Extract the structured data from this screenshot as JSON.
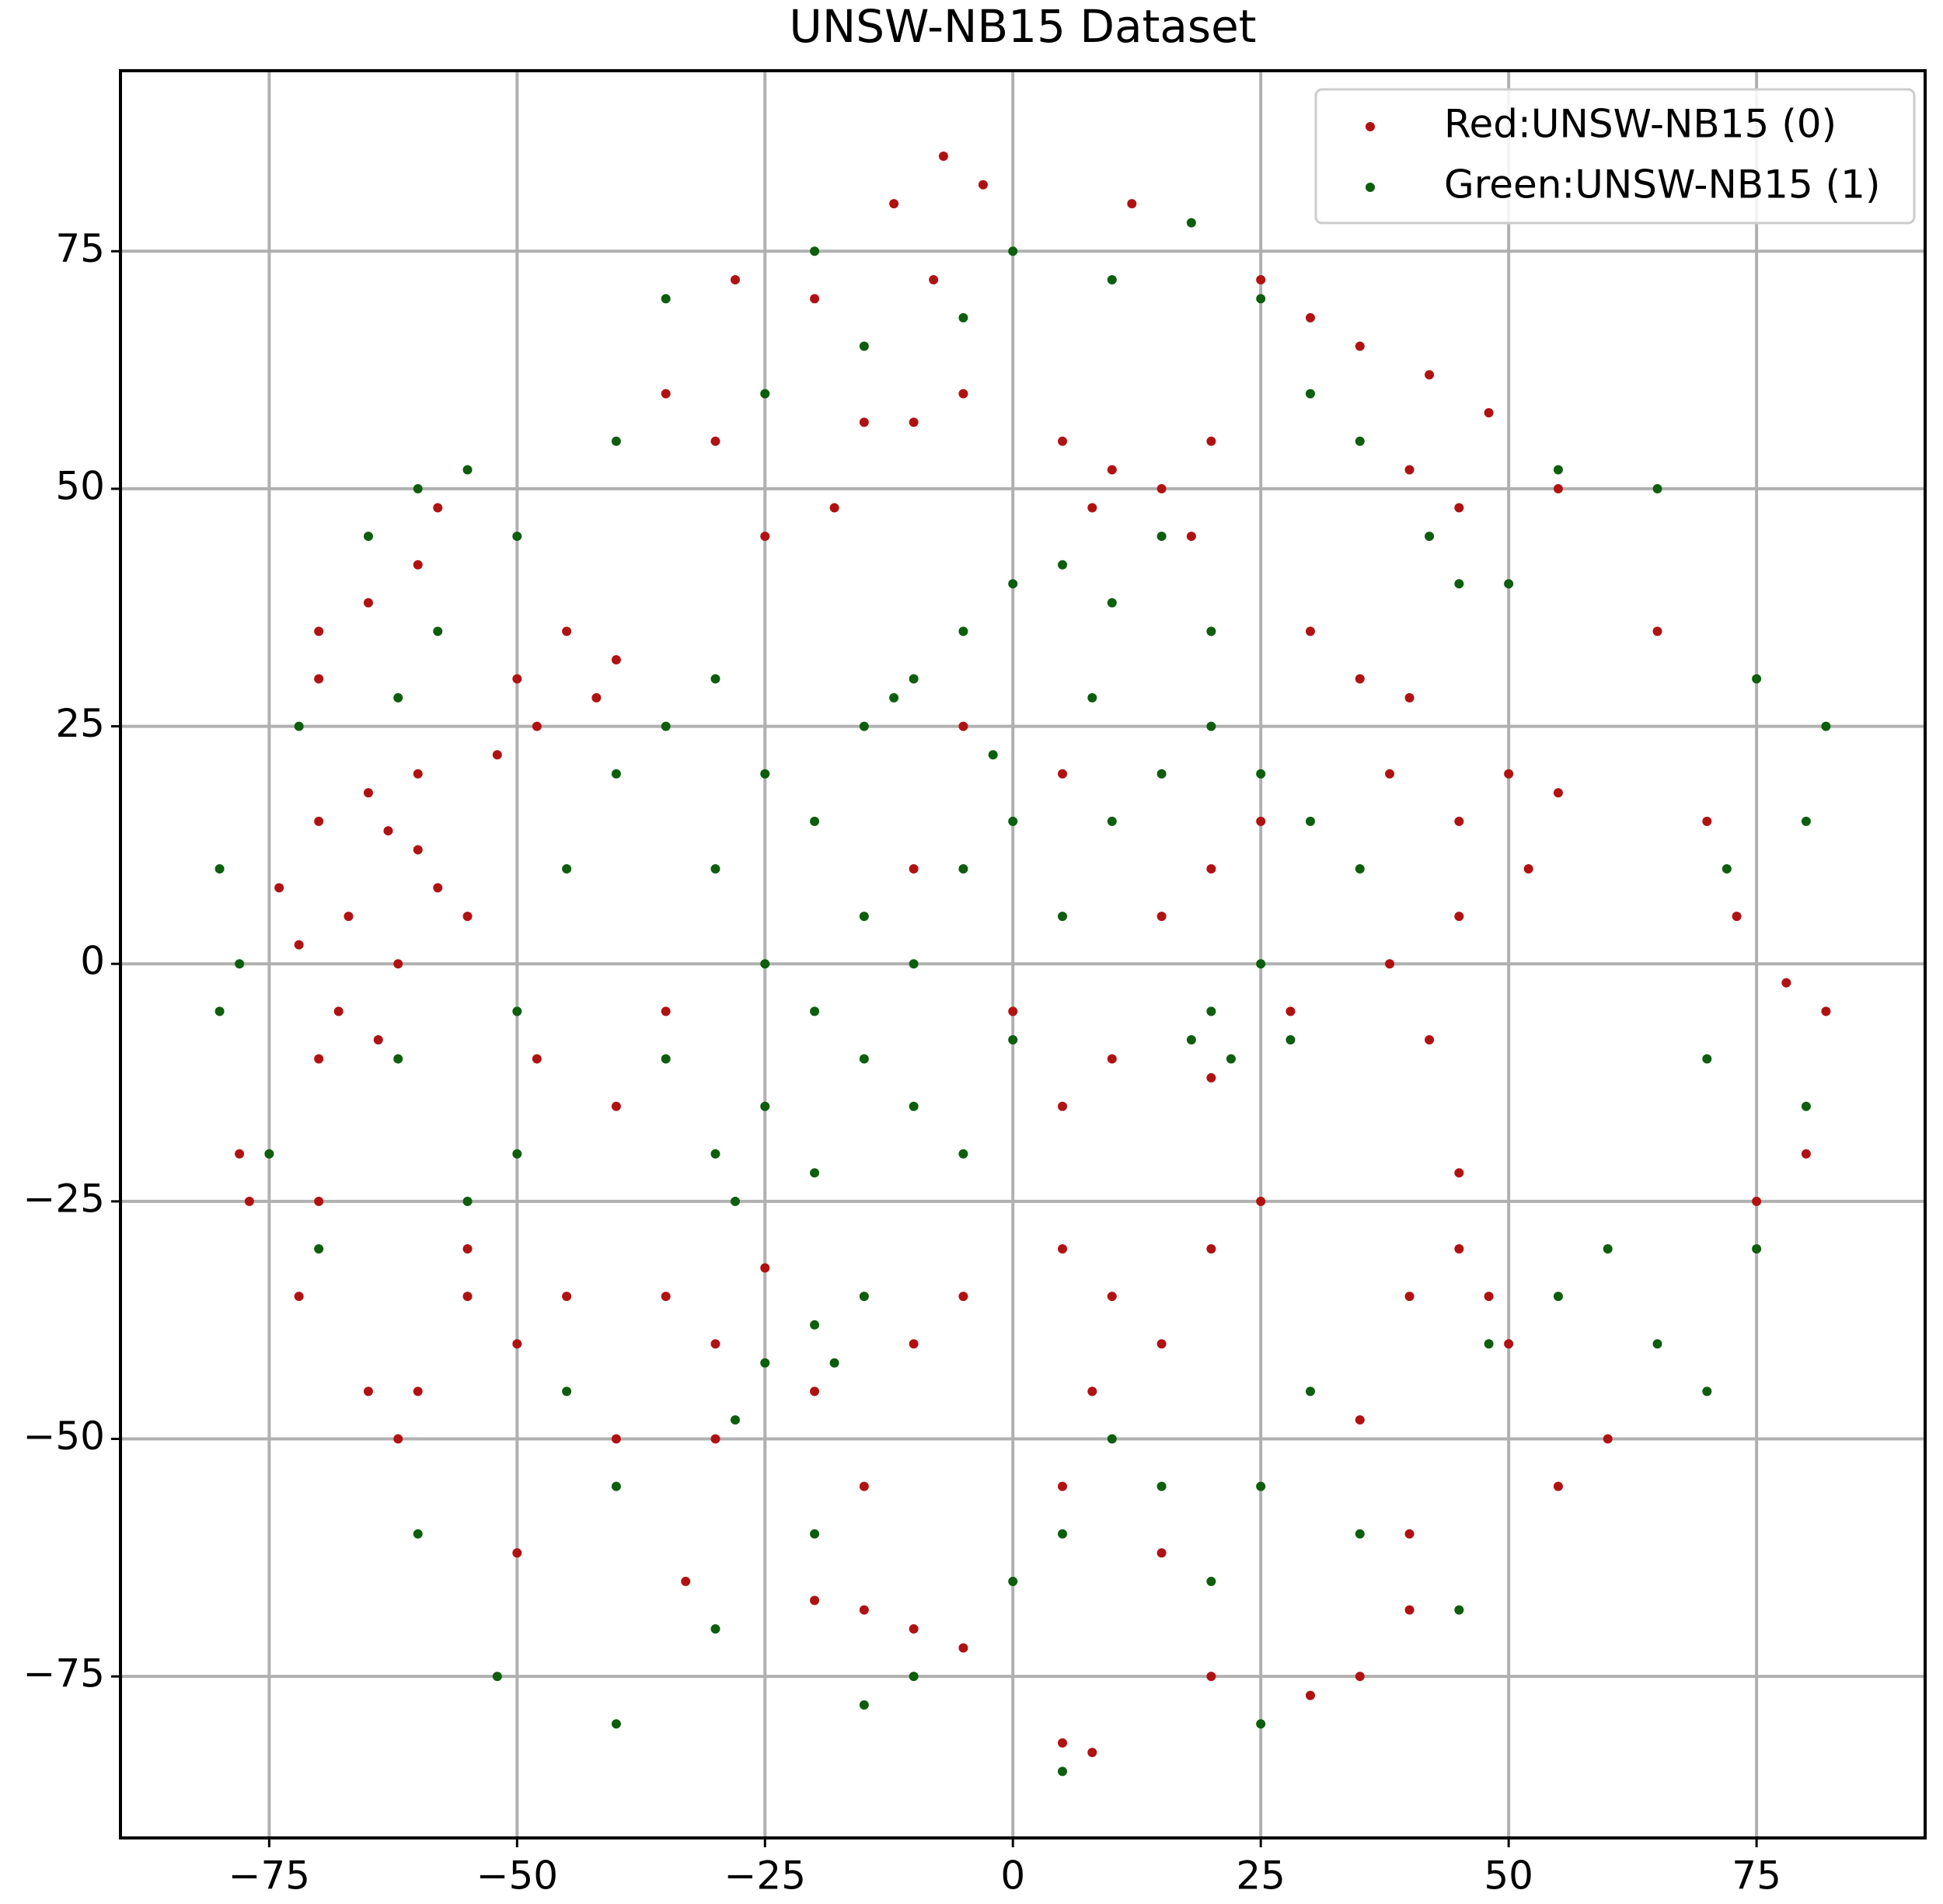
{
  "chart_data": {
    "type": "scatter",
    "title": "UNSW-NB15 Dataset",
    "xlim": [
      -90,
      92
    ],
    "ylim": [
      -92,
      94
    ],
    "xticks": [
      {
        "value": -75,
        "label": "−75"
      },
      {
        "value": -50,
        "label": "−50"
      },
      {
        "value": -25,
        "label": "−25"
      },
      0,
      25,
      50,
      75
    ],
    "yticks": [
      {
        "value": -75,
        "label": "−75"
      },
      {
        "value": -50,
        "label": "−50"
      },
      {
        "value": -25,
        "label": "−25"
      },
      0,
      25,
      50,
      75
    ],
    "grid": true,
    "legend": "upper right",
    "series": [
      {
        "name": "Red:UNSW-NB15 (0)",
        "color": "#b01212",
        "x": [
          -70,
          -65,
          -60,
          -67,
          -72,
          -62,
          -58,
          -68,
          -64,
          -74,
          -60,
          -55,
          -70,
          -63,
          -50,
          -45,
          -42,
          -48,
          -40,
          -52,
          -70,
          -65,
          -60,
          -58,
          -70,
          -35,
          -30,
          -20,
          -15,
          -10,
          -5,
          -8,
          -12,
          -7,
          -28,
          -25,
          -18,
          5,
          10,
          15,
          20,
          8,
          18,
          12,
          -3,
          25,
          30,
          35,
          42,
          48,
          55,
          40,
          45,
          30,
          35,
          40,
          38,
          45,
          50,
          52,
          45,
          38,
          42,
          55,
          65,
          70,
          73,
          78,
          82,
          -10,
          5,
          15,
          20,
          25,
          0,
          10,
          5,
          -5,
          28,
          20,
          -35,
          -40,
          -48,
          -50,
          -45,
          -35,
          -30,
          -25,
          -20,
          -30,
          -40,
          -15,
          -10,
          -5,
          5,
          10,
          15,
          20,
          25,
          8,
          5,
          15,
          -15,
          -10,
          -5,
          -20,
          45,
          48,
          50,
          40,
          45,
          35,
          40,
          40,
          35,
          30,
          20,
          5,
          8,
          55,
          60,
          75,
          80,
          -65,
          -62,
          -78,
          -77,
          -72,
          -70,
          -55,
          -60,
          -33,
          -50,
          -55
        ],
        "values": [
          15,
          18,
          12,
          5,
          2,
          0,
          8,
          -5,
          -8,
          8,
          20,
          5,
          -10,
          14,
          30,
          35,
          28,
          25,
          32,
          22,
          35,
          38,
          42,
          48,
          30,
          60,
          55,
          70,
          57,
          57,
          60,
          72,
          80,
          85,
          72,
          45,
          48,
          55,
          52,
          50,
          55,
          48,
          45,
          80,
          82,
          72,
          68,
          65,
          62,
          58,
          50,
          52,
          48,
          35,
          30,
          28,
          20,
          15,
          20,
          10,
          5,
          0,
          -8,
          18,
          35,
          15,
          5,
          -2,
          -5,
          10,
          20,
          5,
          10,
          15,
          -5,
          -10,
          -15,
          25,
          -5,
          -12,
          -5,
          -15,
          -10,
          -40,
          -35,
          -35,
          -40,
          -32,
          -45,
          -50,
          -50,
          -55,
          -40,
          -35,
          -30,
          -35,
          -40,
          -30,
          -25,
          -45,
          -55,
          -62,
          -68,
          -70,
          -72,
          -67,
          -30,
          -35,
          -40,
          -35,
          -22,
          -48,
          -60,
          -68,
          -75,
          -77,
          -75,
          -82,
          -83,
          -55,
          -50,
          -25,
          -20,
          -45,
          -50,
          -20,
          -25,
          -35,
          -25,
          -35,
          -45,
          -65,
          -62,
          -30
        ]
      },
      {
        "name": "Green:UNSW-NB15 (1)",
        "color": "#0d5e0d",
        "x": [
          -40,
          -35,
          -30,
          -25,
          -20,
          -15,
          -10,
          -5,
          0,
          5,
          10,
          15,
          20,
          -30,
          -25,
          -20,
          -15,
          -10,
          -5,
          -25,
          -30,
          -35,
          -15,
          -5,
          0,
          5,
          10,
          15,
          20,
          25,
          30,
          35,
          25,
          20,
          22,
          28,
          18,
          -10,
          0,
          -20,
          -28,
          -12,
          -2,
          8,
          -80,
          -78,
          -80,
          -75,
          -70,
          -60,
          -55,
          -50,
          -45,
          -40,
          -30,
          -20,
          -25,
          -20,
          -15,
          -10,
          0,
          5,
          10,
          15,
          20,
          25,
          30,
          35,
          45,
          48,
          55,
          60,
          65,
          70,
          75,
          80,
          70,
          72,
          80,
          82,
          75,
          65,
          55,
          50,
          45,
          42,
          35,
          30,
          25,
          18,
          10,
          0,
          -5,
          -15,
          -20,
          -25,
          -35,
          -40,
          -50,
          -55,
          -60,
          -65,
          -72,
          -62,
          -58,
          -45,
          -50,
          -62,
          -52,
          -40,
          -15,
          5,
          25,
          -28,
          -18
        ],
        "values": [
          20,
          25,
          30,
          20,
          15,
          25,
          30,
          35,
          40,
          42,
          38,
          45,
          35,
          10,
          0,
          -5,
          -10,
          -15,
          -20,
          -15,
          -20,
          -10,
          5,
          10,
          15,
          5,
          15,
          20,
          25,
          20,
          15,
          10,
          0,
          -5,
          -10,
          -8,
          -8,
          0,
          -8,
          -22,
          -25,
          28,
          22,
          28,
          10,
          0,
          -5,
          -20,
          -30,
          -60,
          -25,
          -20,
          -45,
          -55,
          -70,
          -60,
          -42,
          -38,
          -35,
          -75,
          -65,
          -60,
          -50,
          -55,
          -65,
          -55,
          -45,
          -60,
          -68,
          -40,
          -35,
          -30,
          -40,
          -45,
          -30,
          -15,
          -10,
          10,
          15,
          25,
          30,
          50,
          52,
          40,
          40,
          45,
          55,
          60,
          70,
          78,
          72,
          75,
          68,
          65,
          75,
          60,
          70,
          55,
          45,
          52,
          50,
          45,
          25,
          28,
          35,
          10,
          -5,
          -10,
          -75,
          -80,
          -78,
          -85,
          -80,
          -48,
          -42
        ]
      }
    ]
  }
}
